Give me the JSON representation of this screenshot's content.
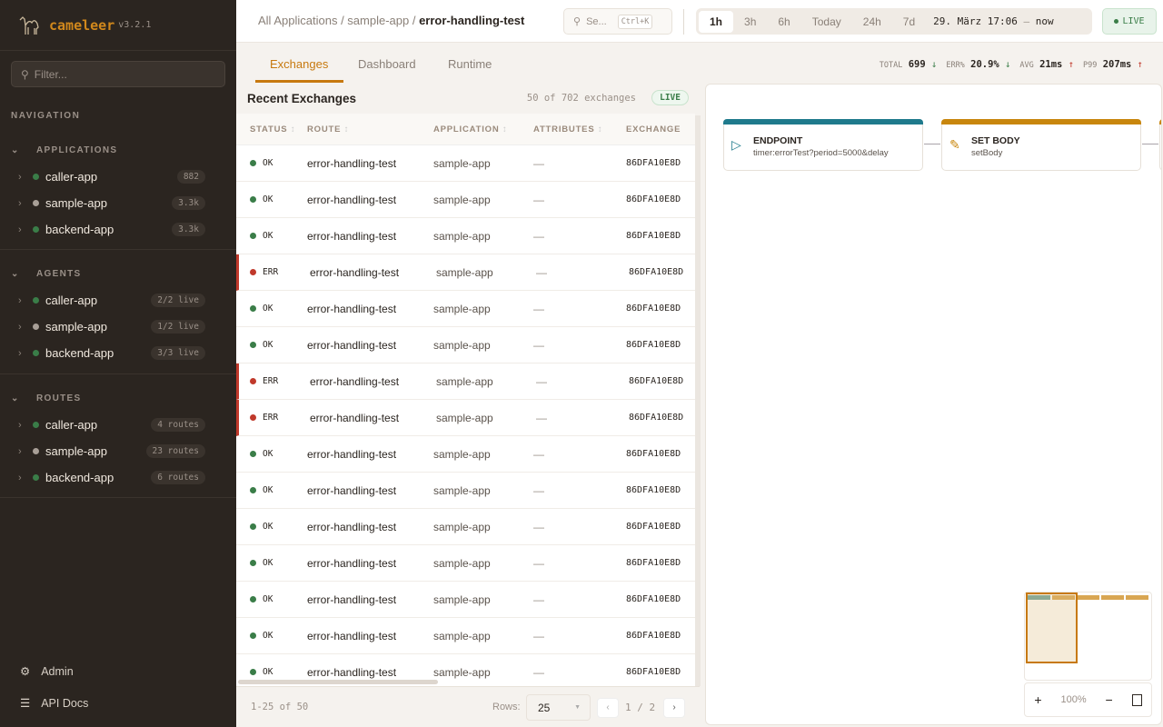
{
  "app": {
    "name": "cameleer",
    "version": "v3.2.1",
    "filter_placeholder": "Filter..."
  },
  "sidebar": {
    "nav_label": "NAVIGATION",
    "sections": [
      {
        "title": "APPLICATIONS",
        "items": [
          {
            "label": "caller-app",
            "badge": "882",
            "status": "green"
          },
          {
            "label": "sample-app",
            "badge": "3.3k",
            "status": "grey"
          },
          {
            "label": "backend-app",
            "badge": "3.3k",
            "status": "green"
          }
        ]
      },
      {
        "title": "AGENTS",
        "items": [
          {
            "label": "caller-app",
            "badge": "2/2 live",
            "status": "green"
          },
          {
            "label": "sample-app",
            "badge": "1/2 live",
            "status": "grey"
          },
          {
            "label": "backend-app",
            "badge": "3/3 live",
            "status": "green"
          }
        ]
      },
      {
        "title": "ROUTES",
        "items": [
          {
            "label": "caller-app",
            "badge": "4 routes",
            "status": "green"
          },
          {
            "label": "sample-app",
            "badge": "23 routes",
            "status": "grey"
          },
          {
            "label": "backend-app",
            "badge": "6 routes",
            "status": "green"
          }
        ]
      }
    ],
    "footer": [
      {
        "label": "Admin",
        "icon": "gear-icon"
      },
      {
        "label": "API Docs",
        "icon": "document-icon"
      }
    ]
  },
  "header": {
    "breadcrumb": [
      "All Applications",
      "sample-app",
      "error-handling-test"
    ],
    "search_placeholder": "Se...",
    "search_shortcut": "Ctrl+K",
    "time_options": [
      "1h",
      "3h",
      "6h",
      "Today",
      "24h",
      "7d"
    ],
    "time_selected": "1h",
    "range_start": "29. März 17:06",
    "range_sep": "—",
    "range_end": "now",
    "live": "LIVE"
  },
  "tabs": [
    "Exchanges",
    "Dashboard",
    "Runtime"
  ],
  "active_tab": "Exchanges",
  "kpis": [
    {
      "label": "TOTAL",
      "value": "699",
      "trend": "down"
    },
    {
      "label": "ERR%",
      "value": "20.9%",
      "trend": "down"
    },
    {
      "label": "AVG",
      "value": "21ms",
      "trend": "up"
    },
    {
      "label": "P99",
      "value": "207ms",
      "trend": "up"
    }
  ],
  "exchanges": {
    "title": "Recent Exchanges",
    "count": "50 of 702 exchanges",
    "live": "LIVE",
    "columns": [
      "STATUS",
      "ROUTE",
      "APPLICATION",
      "ATTRIBUTES",
      "EXCHANGE"
    ],
    "rows": [
      {
        "status": "OK",
        "route": "error-handling-test",
        "app": "sample-app",
        "attrs": "—",
        "id": "86DFA10E8D"
      },
      {
        "status": "OK",
        "route": "error-handling-test",
        "app": "sample-app",
        "attrs": "—",
        "id": "86DFA10E8D"
      },
      {
        "status": "OK",
        "route": "error-handling-test",
        "app": "sample-app",
        "attrs": "—",
        "id": "86DFA10E8D"
      },
      {
        "status": "ERR",
        "route": "error-handling-test",
        "app": "sample-app",
        "attrs": "—",
        "id": "86DFA10E8D"
      },
      {
        "status": "OK",
        "route": "error-handling-test",
        "app": "sample-app",
        "attrs": "—",
        "id": "86DFA10E8D"
      },
      {
        "status": "OK",
        "route": "error-handling-test",
        "app": "sample-app",
        "attrs": "—",
        "id": "86DFA10E8D"
      },
      {
        "status": "ERR",
        "route": "error-handling-test",
        "app": "sample-app",
        "attrs": "—",
        "id": "86DFA10E8D"
      },
      {
        "status": "ERR",
        "route": "error-handling-test",
        "app": "sample-app",
        "attrs": "—",
        "id": "86DFA10E8D"
      },
      {
        "status": "OK",
        "route": "error-handling-test",
        "app": "sample-app",
        "attrs": "—",
        "id": "86DFA10E8D"
      },
      {
        "status": "OK",
        "route": "error-handling-test",
        "app": "sample-app",
        "attrs": "—",
        "id": "86DFA10E8D"
      },
      {
        "status": "OK",
        "route": "error-handling-test",
        "app": "sample-app",
        "attrs": "—",
        "id": "86DFA10E8D"
      },
      {
        "status": "OK",
        "route": "error-handling-test",
        "app": "sample-app",
        "attrs": "—",
        "id": "86DFA10E8D"
      },
      {
        "status": "OK",
        "route": "error-handling-test",
        "app": "sample-app",
        "attrs": "—",
        "id": "86DFA10E8D"
      },
      {
        "status": "OK",
        "route": "error-handling-test",
        "app": "sample-app",
        "attrs": "—",
        "id": "86DFA10E8D"
      },
      {
        "status": "OK",
        "route": "error-handling-test",
        "app": "sample-app",
        "attrs": "—",
        "id": "86DFA10E8D"
      }
    ],
    "range": "1-25 of 50",
    "rows_label": "Rows:",
    "rows_value": "25",
    "page": "1",
    "page_sep": "/",
    "pages": "2"
  },
  "diagram": {
    "nodes": [
      {
        "title": "ENDPOINT",
        "sub": "timer:errorTest?period=5000&delay",
        "color": "#1f7a8c",
        "icon": "play-icon"
      },
      {
        "title": "SET BODY",
        "sub": "setBody",
        "color": "#c8860d",
        "icon": "pencil-icon"
      }
    ],
    "zoom": "100%"
  },
  "colors": {
    "accent": "#c7790f",
    "ok": "#3a7d48",
    "err": "#c0392b",
    "idle": "#a89f97"
  }
}
